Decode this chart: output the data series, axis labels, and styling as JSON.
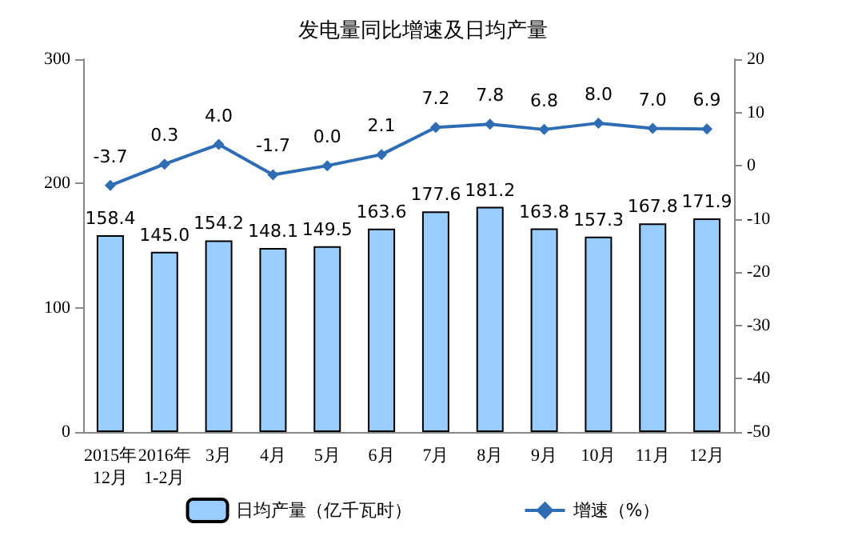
{
  "chart_data": {
    "type": "bar",
    "title": "发电量同比增速及日均产量",
    "categories": [
      "2015年\n12月",
      "2016年\n1-2月",
      "3月",
      "4月",
      "5月",
      "6月",
      "7月",
      "8月",
      "9月",
      "10月",
      "11月",
      "12月"
    ],
    "series": [
      {
        "name": "日均产量（亿千瓦时）",
        "color": "#99ccff",
        "values": [
          158.4,
          145.0,
          154.2,
          148.1,
          149.5,
          163.6,
          177.6,
          181.2,
          163.8,
          157.3,
          167.8,
          171.9
        ],
        "value_labels": [
          "158.4",
          "145.0",
          "154.2",
          "148.1",
          "149.5",
          "163.6",
          "177.6",
          "181.2",
          "163.8",
          "157.3",
          "167.8",
          "171.9"
        ]
      },
      {
        "name": "增速（%）",
        "type": "line",
        "axis": "y2",
        "color": "#2e6db4",
        "marker": "diamond",
        "values": [
          -3.7,
          0.3,
          4.0,
          -1.7,
          0.0,
          2.1,
          7.2,
          7.8,
          6.8,
          8.0,
          7.0,
          6.9
        ],
        "value_labels": [
          "-3.7",
          "0.3",
          "4.0",
          "-1.7",
          "0.0",
          "2.1",
          "7.2",
          "7.8",
          "6.8",
          "8.0",
          "7.0",
          "6.9"
        ]
      }
    ],
    "ylim": [
      0,
      300
    ],
    "yticks": [
      0,
      100,
      200,
      300
    ],
    "y2lim": [
      -50,
      20
    ],
    "y2ticks": [
      -50,
      -40,
      -30,
      -20,
      -10,
      0,
      10,
      20
    ],
    "legend": "bottom",
    "grid": false
  }
}
